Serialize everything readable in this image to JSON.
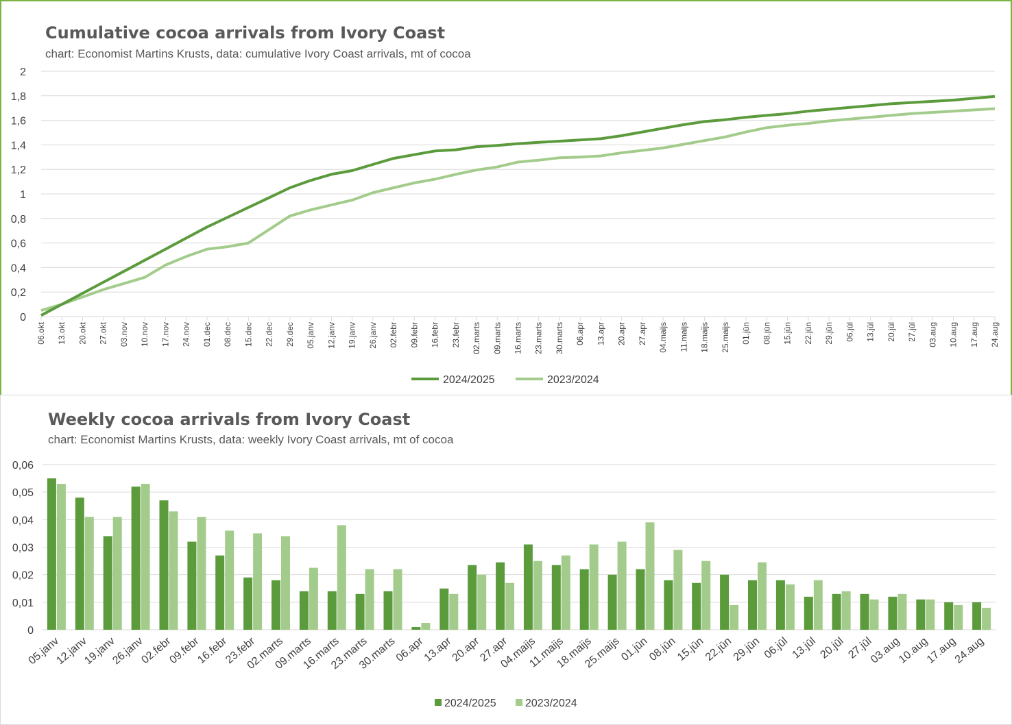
{
  "charts": {
    "cumulative": {
      "title": "Cumulative cocoa arrivals from Ivory Coast",
      "subtitle": "chart: Economist Martins Krusts, data: cumulative Ivory Coast arrivals, mt of cocoa"
    },
    "weekly": {
      "title": "Weekly cocoa arrivals from Ivory Coast",
      "subtitle": "chart: Economist Martins Krusts, data: weekly Ivory Coast arrivals, mt of cocoa"
    }
  },
  "colors": {
    "s2025": "#5b9b3c",
    "s2024": "#a3cc8c",
    "grid": "#d9d9d9",
    "border": "#7cb342"
  },
  "chart_data": [
    {
      "type": "line",
      "title": "Cumulative cocoa arrivals from Ivory Coast",
      "subtitle": "chart: Economist Martins Krusts, data: cumulative Ivory Coast arrivals, mt of cocoa",
      "ylim": [
        0,
        2
      ],
      "yticks": [
        "0",
        "0,2",
        "0,4",
        "0,6",
        "0,8",
        "1",
        "1,2",
        "1,4",
        "1,6",
        "1,8",
        "2"
      ],
      "categories": [
        "06.okt",
        "13.okt",
        "20.okt",
        "27.okt",
        "03.nov",
        "10.nov",
        "17.nov",
        "24.nov",
        "01.dec",
        "08.dec",
        "15.dec",
        "22.dec",
        "29.dec",
        "05.janv",
        "12.janv",
        "19.janv",
        "26.janv",
        "02.febr",
        "09.febr",
        "16.febr",
        "23.febr",
        "02.marts",
        "09.marts",
        "16.marts",
        "23.marts",
        "30.marts",
        "06.apr",
        "13.apr",
        "20.apr",
        "27.apr",
        "04.maijs",
        "11.maijs",
        "18.maijs",
        "25.maijs",
        "01.jūn",
        "08.jūn",
        "15.jūn",
        "22.jūn",
        "29.jūn",
        "06.jūl",
        "13.jūl",
        "20.jūl",
        "27.jūl",
        "03.aug",
        "10.aug",
        "17.aug",
        "24.aug"
      ],
      "series": [
        {
          "name": "2024/2025",
          "values": [
            0.01,
            0.1,
            0.19,
            0.28,
            0.37,
            0.46,
            0.55,
            0.64,
            0.73,
            0.81,
            0.89,
            0.97,
            1.05,
            1.11,
            1.16,
            1.19,
            1.24,
            1.29,
            1.32,
            1.35,
            1.36,
            1.385,
            1.395,
            1.41,
            1.42,
            1.43,
            1.44,
            1.45,
            1.475,
            1.505,
            1.535,
            1.565,
            1.59,
            1.605,
            1.625,
            1.64,
            1.655,
            1.675,
            1.69,
            1.705,
            1.72,
            1.735,
            1.745,
            1.755,
            1.765,
            1.78,
            1.795
          ]
        },
        {
          "name": "2023/2024",
          "values": [
            0.05,
            0.1,
            0.16,
            0.22,
            0.27,
            0.32,
            0.42,
            0.49,
            0.55,
            0.57,
            0.6,
            0.71,
            0.82,
            0.87,
            0.91,
            0.95,
            1.01,
            1.05,
            1.09,
            1.12,
            1.16,
            1.195,
            1.22,
            1.26,
            1.275,
            1.295,
            1.3,
            1.31,
            1.335,
            1.355,
            1.375,
            1.405,
            1.435,
            1.465,
            1.505,
            1.54,
            1.56,
            1.575,
            1.595,
            1.61,
            1.625,
            1.64,
            1.655,
            1.665,
            1.675,
            1.685,
            1.695
          ]
        }
      ],
      "legend": "bottom"
    },
    {
      "type": "bar",
      "title": "Weekly cocoa arrivals from Ivory Coast",
      "subtitle": "chart: Economist Martins Krusts, data: weekly Ivory Coast arrivals, mt of cocoa",
      "ylim": [
        0,
        0.06
      ],
      "yticks": [
        "0",
        "0,01",
        "0,02",
        "0,03",
        "0,04",
        "0,05",
        "0,06"
      ],
      "categories": [
        "05.janv",
        "12.janv",
        "19.janv",
        "26.janv",
        "02.febr",
        "09.febr",
        "16.febr",
        "23.febr",
        "02.marts",
        "09.marts",
        "16.marts",
        "23.marts",
        "30.marts",
        "06.apr",
        "13.apr",
        "20.apr",
        "27.apr",
        "04.maijs",
        "11.maijs",
        "18.maijs",
        "25.maijs",
        "01.jūn",
        "08.jūn",
        "15.jūn",
        "22.jūn",
        "29.jūn",
        "06.jūl",
        "13.jūl",
        "20.jūl",
        "27.jūl",
        "03.aug",
        "10.aug",
        "17.aug",
        "24.aug"
      ],
      "series": [
        {
          "name": "2024/2025",
          "values": [
            0.055,
            0.048,
            0.034,
            0.052,
            0.047,
            0.032,
            0.027,
            0.019,
            0.018,
            0.014,
            0.014,
            0.013,
            0.014,
            0.001,
            0.015,
            0.0235,
            0.0245,
            0.031,
            0.0235,
            0.022,
            0.02,
            0.022,
            0.018,
            0.017,
            0.02,
            0.018,
            0.018,
            0.012,
            0.013,
            0.013,
            0.012,
            0.011,
            0.01,
            0.01
          ]
        },
        {
          "name": "2023/2024",
          "values": [
            0.053,
            0.041,
            0.041,
            0.053,
            0.043,
            0.041,
            0.036,
            0.035,
            0.034,
            0.0225,
            0.038,
            0.022,
            0.022,
            0.0025,
            0.013,
            0.02,
            0.017,
            0.025,
            0.027,
            0.031,
            0.032,
            0.039,
            0.029,
            0.025,
            0.009,
            0.0245,
            0.0165,
            0.018,
            0.014,
            0.011,
            0.013,
            0.011,
            0.009,
            0.008
          ]
        }
      ],
      "legend": "bottom"
    }
  ]
}
